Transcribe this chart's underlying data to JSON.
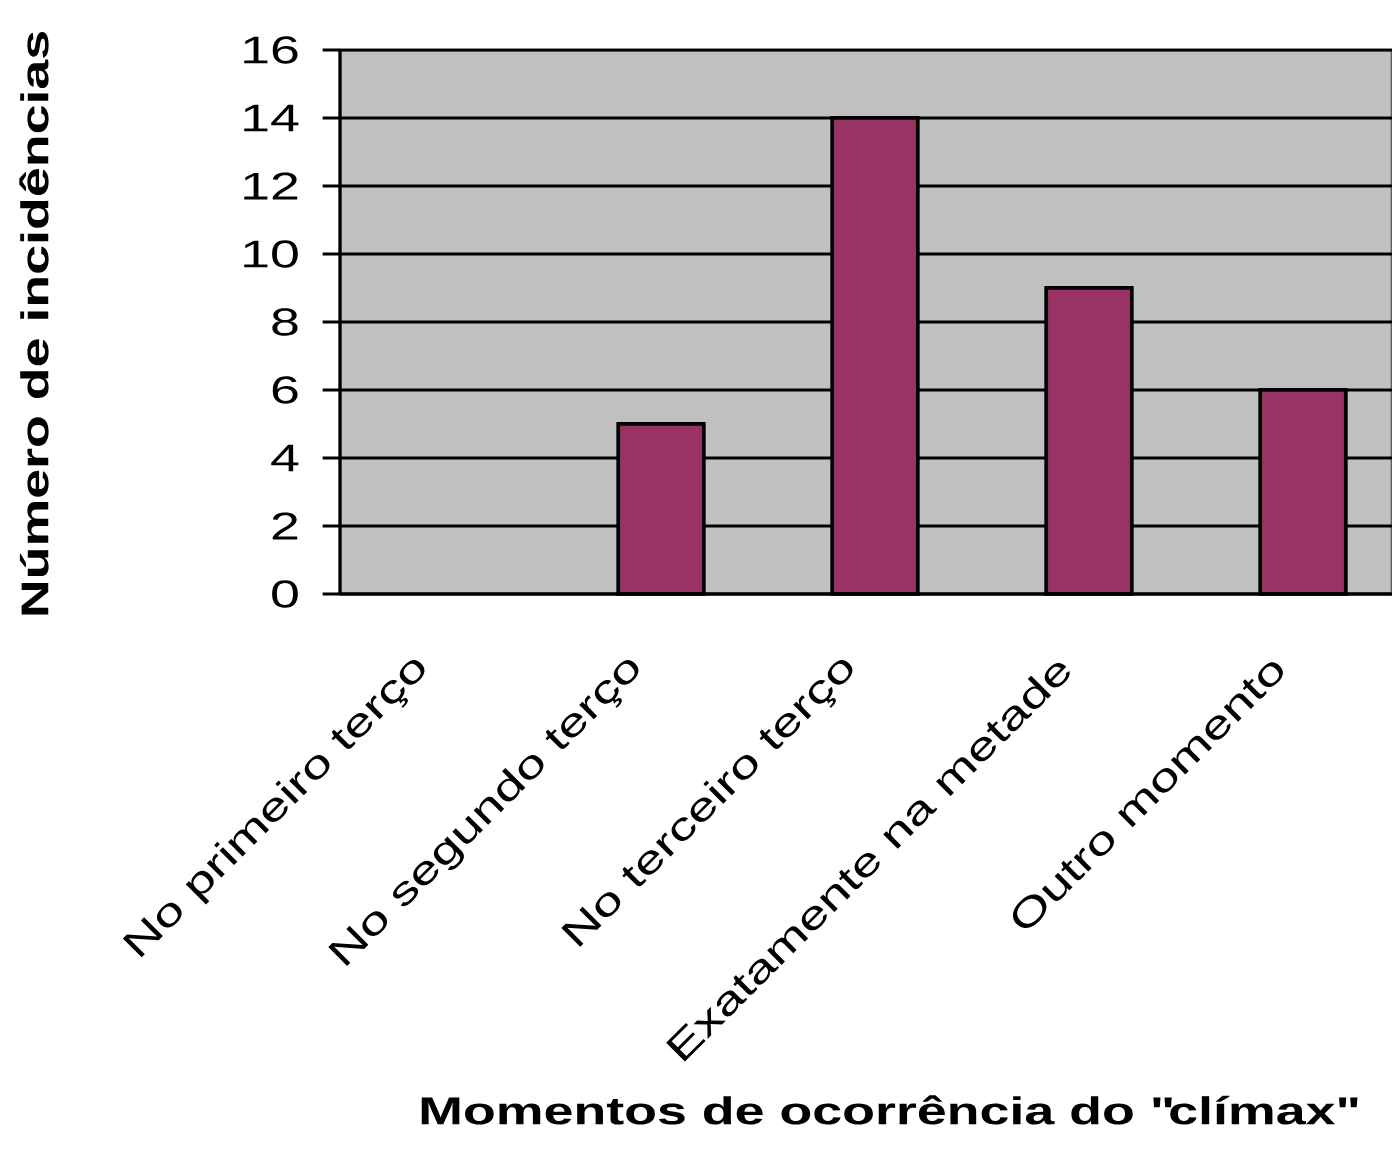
{
  "chart_data": {
    "type": "bar",
    "xlabel": "Momentos de ocorrência do \"clímax\"",
    "ylabel": "Número de incidências",
    "categories": [
      "No primeiro terço",
      "No segundo terço",
      "No terceiro terço",
      "Exatamente na metade",
      "Outro momento"
    ],
    "values": [
      0,
      5,
      14,
      9,
      6
    ],
    "color": "#993366",
    "ylim": [
      0,
      16
    ],
    "yticks": [
      0,
      2,
      4,
      6,
      8,
      10,
      12,
      14,
      16
    ],
    "grid": "y"
  }
}
